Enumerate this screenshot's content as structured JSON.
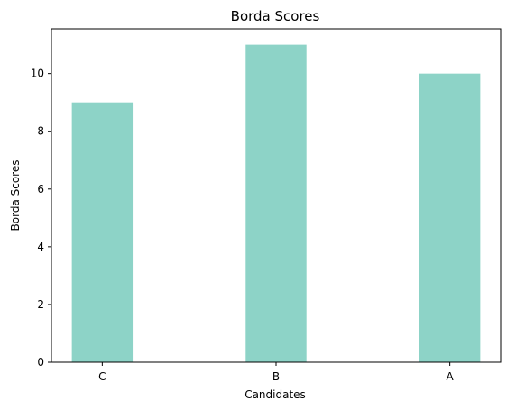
{
  "chart_data": {
    "type": "bar",
    "title": "Borda Scores",
    "xlabel": "Candidates",
    "ylabel": "Borda Scores",
    "categories": [
      "C",
      "B",
      "A"
    ],
    "values": [
      9,
      11,
      10
    ],
    "ylim": [
      0,
      11.55
    ],
    "yticks": [
      0,
      2,
      4,
      6,
      8,
      10
    ],
    "bar_color": "#8dd3c7",
    "grid": false,
    "legend": "none"
  }
}
